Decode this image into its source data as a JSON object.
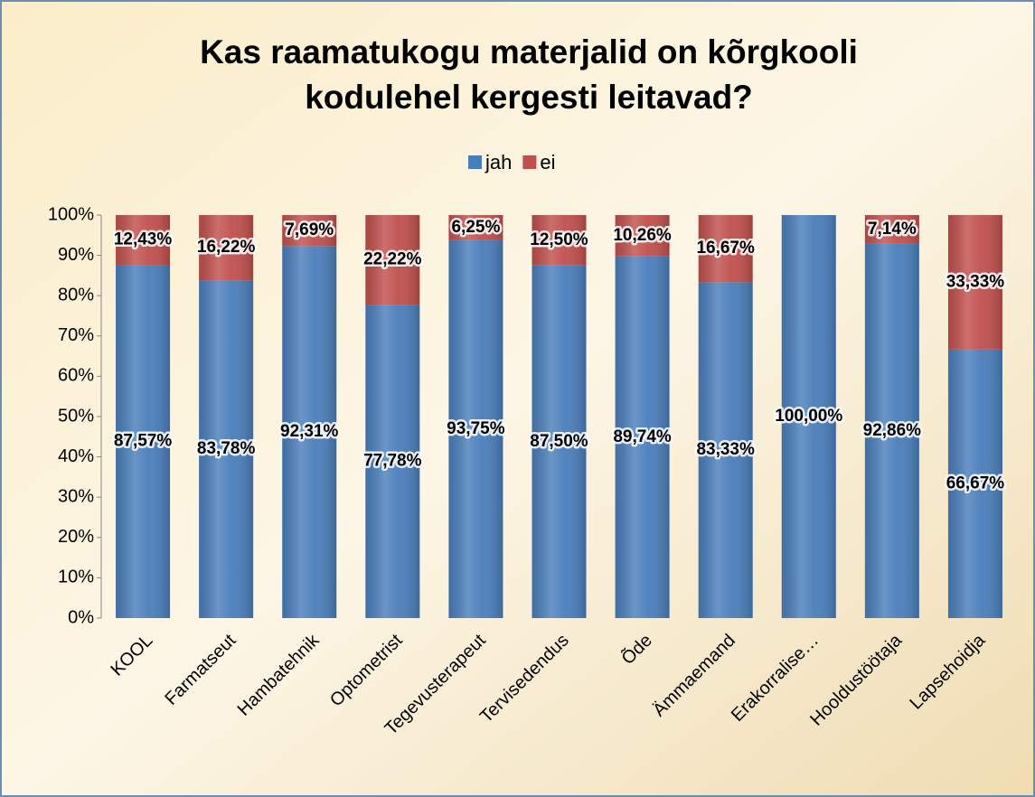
{
  "chart_data": {
    "type": "stacked_bar",
    "title": [
      "Kas raamatukogu materjalid on kõrgkooli",
      "kodulehel kergesti leitavad?"
    ],
    "categories": [
      "KOOL",
      "Farmatseut",
      "Hambatehnik",
      "Optometrist",
      "Tegevusterapeut",
      "Tervisedendus",
      "Õde",
      "Ämmaemand",
      "Erakorralise…",
      "Hooldustöötaja",
      "Lapsehoidja"
    ],
    "series": [
      {
        "name": "jah",
        "color": "#4a7ebb",
        "values": [
          87.57,
          83.78,
          92.31,
          77.78,
          93.75,
          87.5,
          89.74,
          83.33,
          100,
          92.86,
          66.67
        ],
        "value_labels": [
          "87,57%",
          "83,78%",
          "92,31%",
          "77,78%",
          "93,75%",
          "87,50%",
          "89,74%",
          "83,33%",
          "100,00%",
          "92,86%",
          "66,67%"
        ]
      },
      {
        "name": "ei",
        "color": "#c0504d",
        "values": [
          12.43,
          16.22,
          7.69,
          22.22,
          6.25,
          12.5,
          10.26,
          16.67,
          0,
          7.14,
          33.33
        ],
        "value_labels": [
          "12,43%",
          "16,22%",
          "7,69%",
          "22,22%",
          "6,25%",
          "12,50%",
          "10,26%",
          "16,67%",
          null,
          "7,14%",
          "33,33%"
        ]
      }
    ],
    "ylim": [
      0,
      100
    ],
    "yticks": [
      {
        "value": 0,
        "label": "0%"
      },
      {
        "value": 10,
        "label": "10%"
      },
      {
        "value": 20,
        "label": "20%"
      },
      {
        "value": 30,
        "label": "30%"
      },
      {
        "value": 40,
        "label": "40%"
      },
      {
        "value": 50,
        "label": "50%"
      },
      {
        "value": 60,
        "label": "60%"
      },
      {
        "value": 70,
        "label": "70%"
      },
      {
        "value": 80,
        "label": "80%"
      },
      {
        "value": 90,
        "label": "90%"
      },
      {
        "value": 100,
        "label": "100%"
      }
    ],
    "grid": false,
    "legend": "top"
  }
}
